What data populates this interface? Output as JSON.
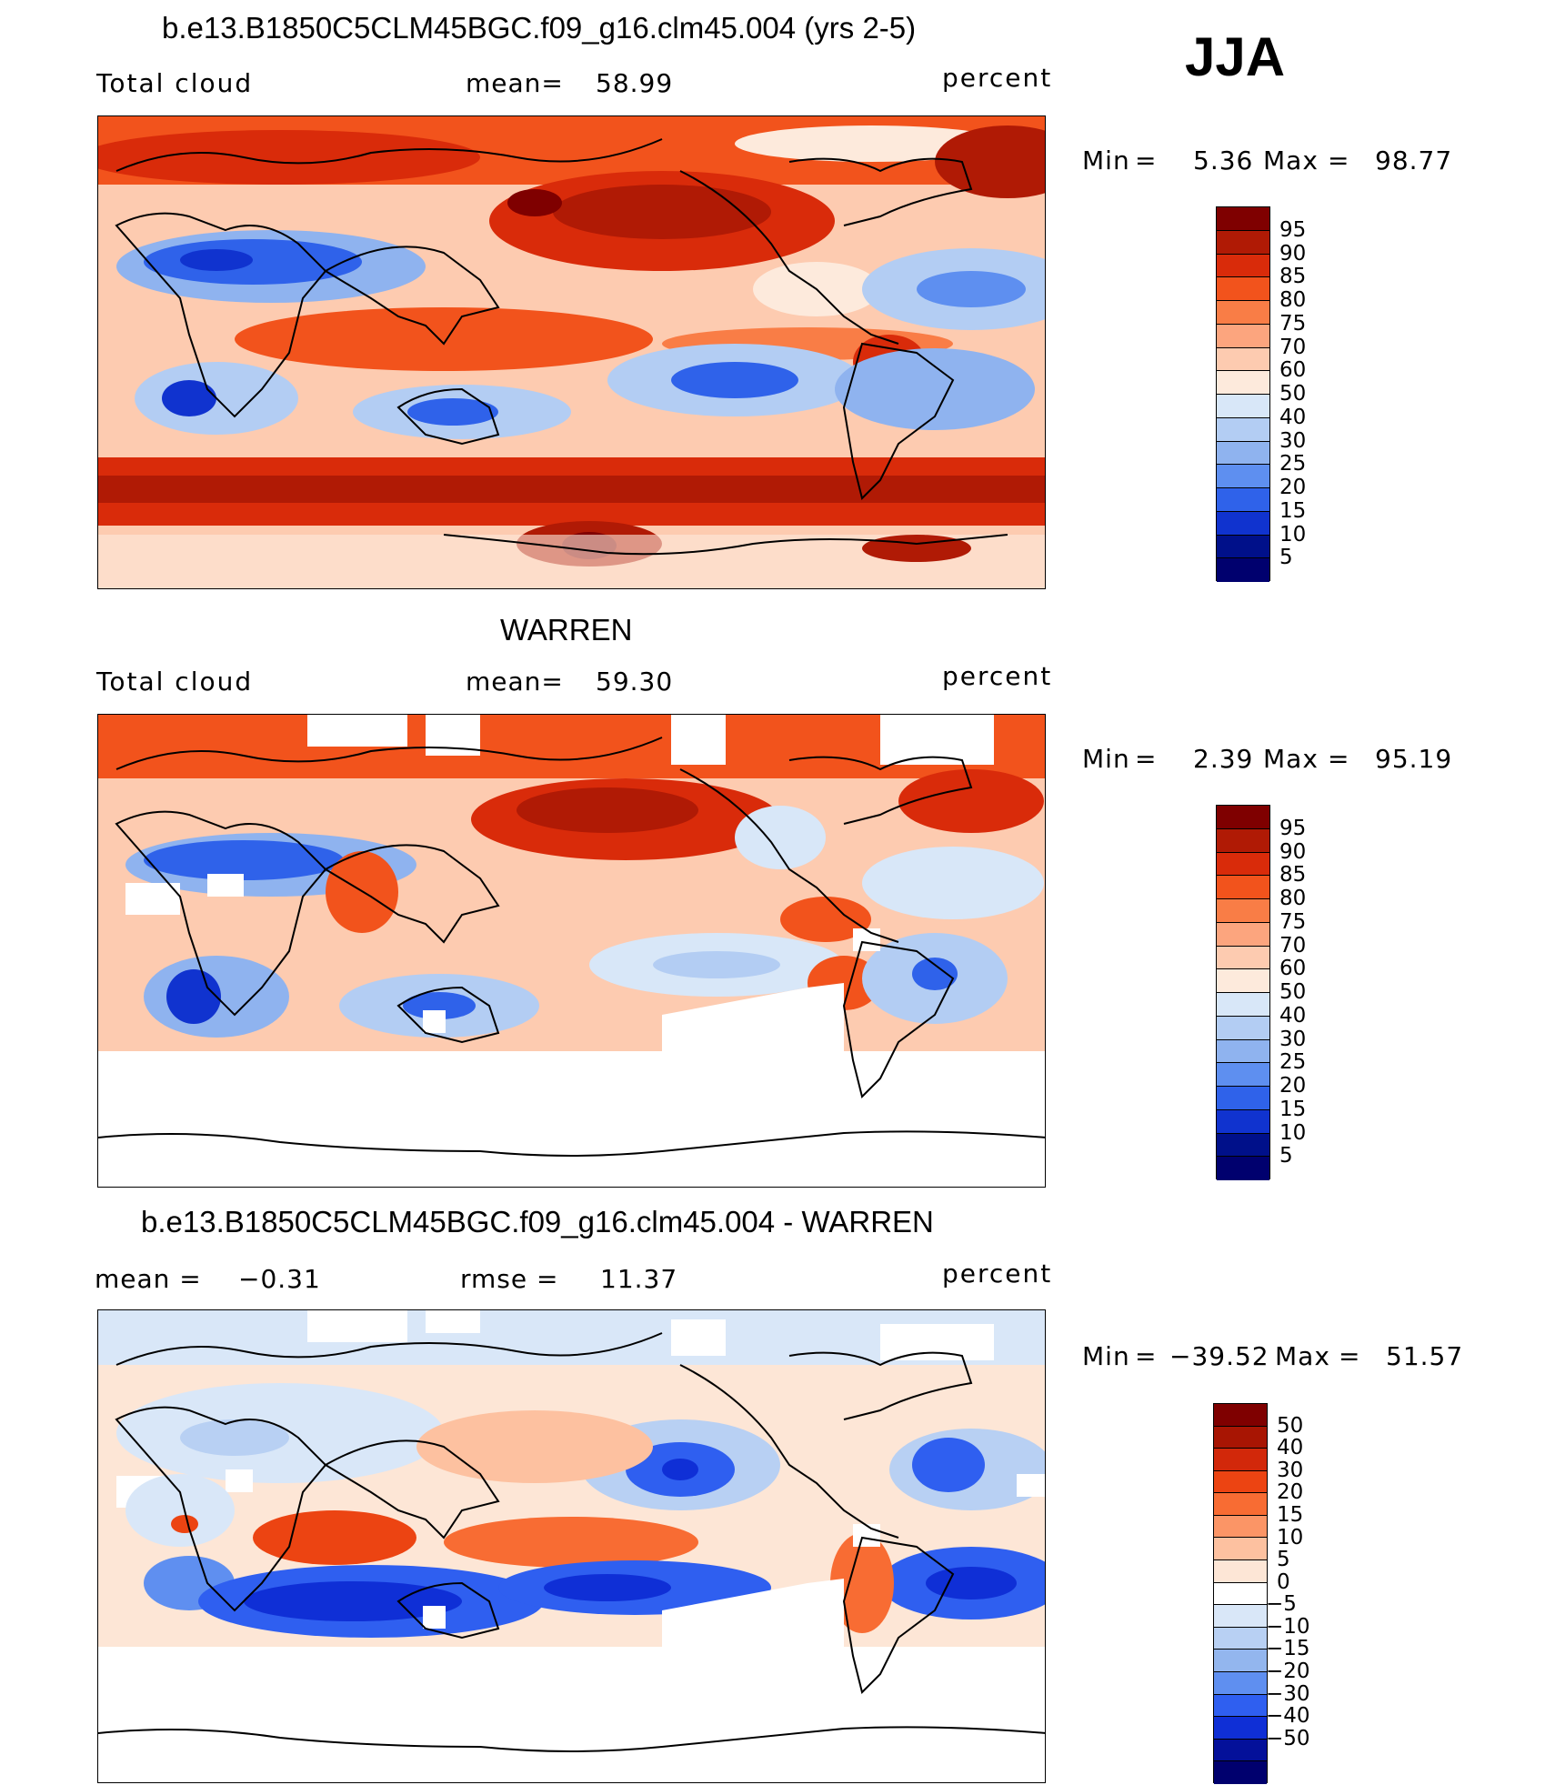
{
  "season": "JJA",
  "units": "percent",
  "panels": [
    {
      "id": "model",
      "title": "b.e13.B1850C5CLM45BGC.f09_g16.clm45.004 (yrs 2-5)",
      "left_label": "Total cloud",
      "stat_label": "mean=",
      "stat_value": "58.99",
      "min_label": "Min",
      "min_value": "5.36",
      "max_label": "Max",
      "max_value": "98.77",
      "levels": [
        "95",
        "90",
        "85",
        "80",
        "75",
        "70",
        "60",
        "50",
        "40",
        "30",
        "25",
        "20",
        "15",
        "10",
        "5"
      ]
    },
    {
      "id": "obs",
      "title": "WARREN",
      "left_label": "Total cloud",
      "stat_label": "mean=",
      "stat_value": "59.30",
      "min_label": "Min",
      "min_value": "2.39",
      "max_label": "Max",
      "max_value": "95.19",
      "levels": [
        "95",
        "90",
        "85",
        "80",
        "75",
        "70",
        "60",
        "50",
        "40",
        "30",
        "25",
        "20",
        "15",
        "10",
        "5"
      ]
    },
    {
      "id": "diff",
      "title": "b.e13.B1850C5CLM45BGC.f09_g16.clm45.004 - WARREN",
      "left_label": "mean =",
      "left_value": "−0.31",
      "stat_label": "rmse =",
      "stat_value": "11.37",
      "min_label": "Min",
      "min_value": "−39.52",
      "max_label": "Max",
      "max_value": "51.57",
      "levels": [
        "50",
        "40",
        "30",
        "20",
        "15",
        "10",
        "5",
        "0",
        "−5",
        "−10",
        "−15",
        "−20",
        "−30",
        "−40",
        "−50"
      ]
    }
  ],
  "colors": {
    "abs_scale": [
      "#7f0000",
      "#b01a05",
      "#d92b0a",
      "#f2531c",
      "#f97d46",
      "#fca57e",
      "#fdcbb0",
      "#fdeadc",
      "#d8e7f8",
      "#b3cdf3",
      "#8fb3ef",
      "#5e8ff0",
      "#2f62ea",
      "#1033cf",
      "#00108a",
      "#00006e"
    ],
    "diff_scale": [
      "#7f0000",
      "#a81503",
      "#d2280a",
      "#ec4412",
      "#f86c33",
      "#fb9566",
      "#fdc1a0",
      "#fde6d6",
      "#ffffff",
      "#d9e7f8",
      "#b8d0f3",
      "#93b6ee",
      "#5f8ff0",
      "#2f5ff0",
      "#0f2fd6",
      "#04109a",
      "#00006e"
    ]
  }
}
